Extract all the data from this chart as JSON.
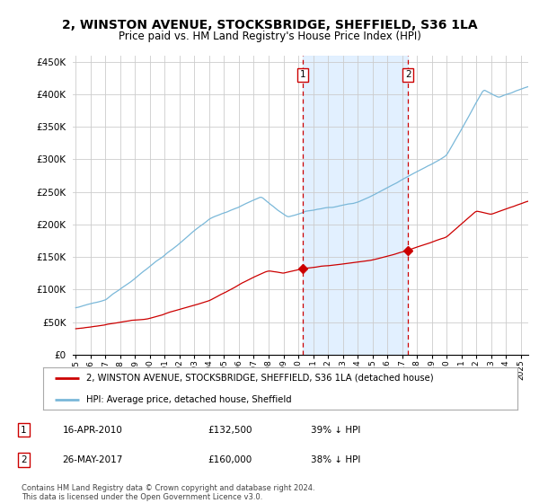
{
  "title": "2, WINSTON AVENUE, STOCKSBRIDGE, SHEFFIELD, S36 1LA",
  "subtitle": "Price paid vs. HM Land Registry's House Price Index (HPI)",
  "title_fontsize": 10,
  "subtitle_fontsize": 8.5,
  "ylabel_ticks": [
    "£0",
    "£50K",
    "£100K",
    "£150K",
    "£200K",
    "£250K",
    "£300K",
    "£350K",
    "£400K",
    "£450K"
  ],
  "ytick_values": [
    0,
    50000,
    100000,
    150000,
    200000,
    250000,
    300000,
    350000,
    400000,
    450000
  ],
  "ylim": [
    0,
    460000
  ],
  "xlim_start": 1994.8,
  "xlim_end": 2025.5,
  "hpi_color": "#7ab8d9",
  "price_color": "#cc0000",
  "shaded_color": "#ddeeff",
  "vline_color": "#cc0000",
  "legend_label_price": "2, WINSTON AVENUE, STOCKSBRIDGE, SHEFFIELD, S36 1LA (detached house)",
  "legend_label_hpi": "HPI: Average price, detached house, Sheffield",
  "sale1_date": 2010.29,
  "sale1_price": 132500,
  "sale1_label": "1",
  "sale2_date": 2017.4,
  "sale2_price": 160000,
  "sale2_label": "2",
  "footnote": "Contains HM Land Registry data © Crown copyright and database right 2024.\nThis data is licensed under the Open Government Licence v3.0.",
  "background_color": "#ffffff",
  "plot_bg_color": "#ffffff",
  "grid_color": "#cccccc",
  "label1_date_str": "16-APR-2010",
  "label1_price_str": "£132,500",
  "label1_pct_str": "39% ↓ HPI",
  "label2_date_str": "26-MAY-2017",
  "label2_price_str": "£160,000",
  "label2_pct_str": "38% ↓ HPI"
}
